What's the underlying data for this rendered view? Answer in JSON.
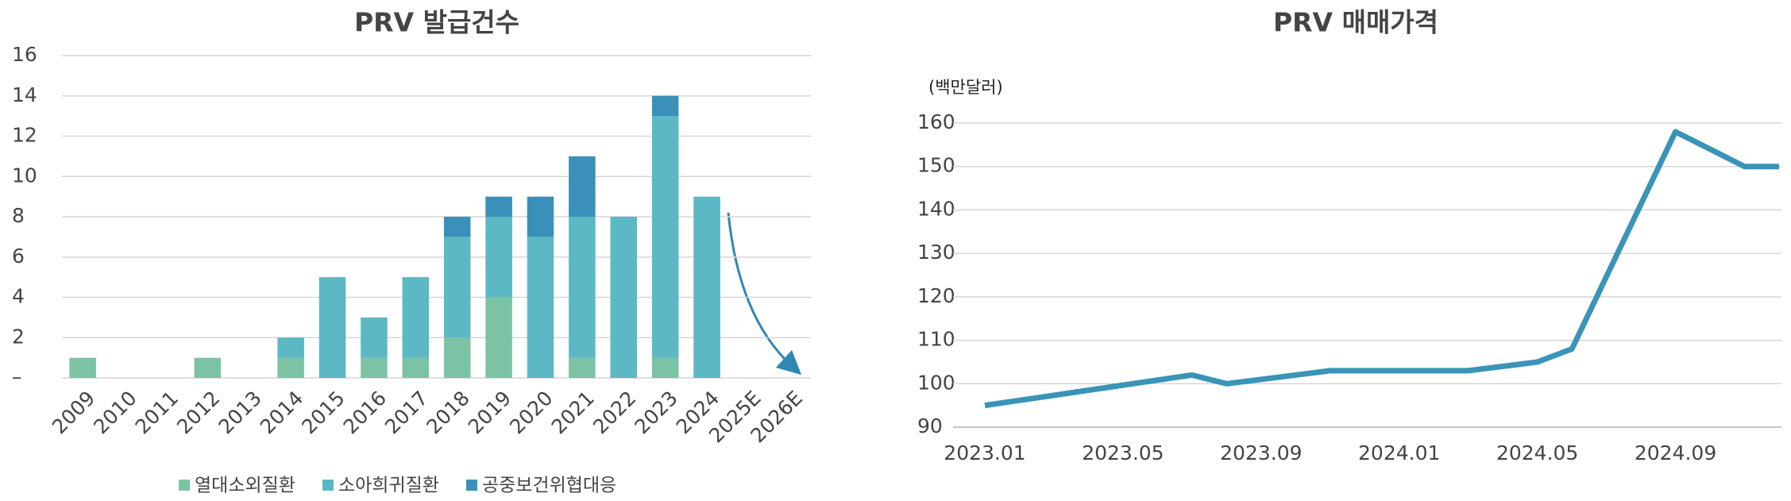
{
  "chart_data": [
    {
      "type": "stacked-bar",
      "title": "PRV 발급건수",
      "categories": [
        "2009",
        "2010",
        "2011",
        "2012",
        "2013",
        "2014",
        "2015",
        "2016",
        "2017",
        "2018",
        "2019",
        "2020",
        "2021",
        "2022",
        "2023",
        "2024",
        "2025E",
        "2026E"
      ],
      "series": [
        {
          "name": "열대소외질환",
          "color": "#7cc3a5",
          "values": [
            1,
            0,
            0,
            1,
            0,
            1,
            0,
            1,
            1,
            2,
            4,
            0,
            1,
            0,
            1,
            0,
            null,
            null
          ]
        },
        {
          "name": "소아희귀질환",
          "color": "#5bb8c4",
          "values": [
            0,
            0,
            0,
            0,
            0,
            1,
            5,
            2,
            4,
            5,
            4,
            7,
            7,
            8,
            12,
            9,
            null,
            null
          ]
        },
        {
          "name": "공중보건위협대응",
          "color": "#3a90b8",
          "values": [
            0,
            0,
            0,
            0,
            0,
            0,
            0,
            0,
            0,
            1,
            1,
            2,
            3,
            0,
            1,
            0,
            null,
            null
          ]
        }
      ],
      "ylim": [
        0,
        16
      ],
      "yticks": [
        {
          "value": 0,
          "label": "–"
        },
        2,
        4,
        6,
        8,
        10,
        12,
        14,
        16
      ],
      "grid": true,
      "legend": "bottom"
    },
    {
      "type": "line",
      "title": "PRV 매매가격",
      "y_label": "(백만달러)",
      "x": [
        "2023.01",
        "2023.07",
        "2023.08",
        "2023.11",
        "2024.03",
        "2024.05",
        "2024.06",
        "2024.09",
        "2024.11",
        "2024.12"
      ],
      "series": [
        {
          "name": "PRV 매매가격",
          "color": "#3a94b8",
          "values": [
            95,
            102,
            100,
            103,
            103,
            105,
            108,
            158,
            150,
            150
          ]
        }
      ],
      "xlim": [
        "2023.01",
        "2024.12"
      ],
      "xticks": [
        "2023.01",
        "2023.05",
        "2023.09",
        "2024.01",
        "2024.05",
        "2024.09"
      ],
      "ylim": [
        90,
        160
      ],
      "yticks": [
        90,
        100,
        110,
        120,
        130,
        140,
        150,
        160
      ],
      "grid": true
    }
  ]
}
